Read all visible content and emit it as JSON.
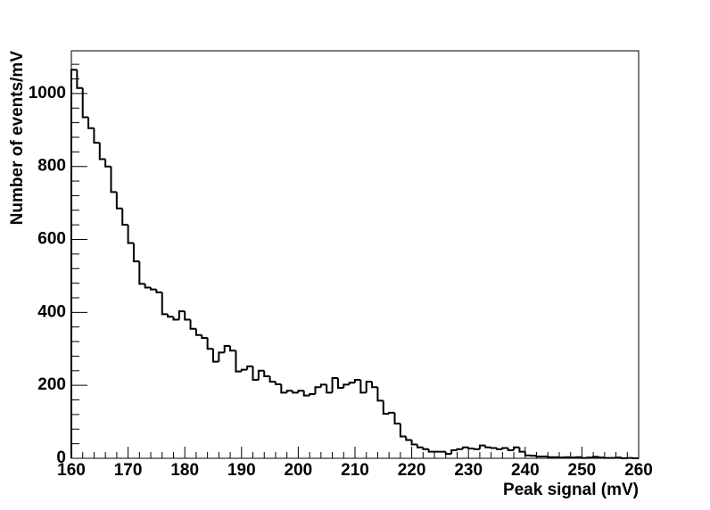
{
  "chart_data": {
    "type": "histogram",
    "xlabel": "Peak signal (mV)",
    "ylabel": "Number of events/mV",
    "color": "#000000",
    "bins": [
      160,
      161,
      162,
      163,
      164,
      165,
      166,
      167,
      168,
      169,
      170,
      171,
      172,
      173,
      174,
      175,
      176,
      177,
      178,
      179,
      180,
      181,
      182,
      183,
      184,
      185,
      186,
      187,
      188,
      189,
      190,
      191,
      192,
      193,
      194,
      195,
      196,
      197,
      198,
      199,
      200,
      201,
      202,
      203,
      204,
      205,
      206,
      207,
      208,
      209,
      210,
      211,
      212,
      213,
      214,
      215,
      216,
      217,
      218,
      219,
      220,
      221,
      222,
      223,
      224,
      225,
      226,
      227,
      228,
      229,
      230,
      231,
      232,
      233,
      234,
      235,
      236,
      237,
      238,
      239,
      240,
      241,
      242,
      243,
      244,
      245,
      246,
      247,
      248,
      249,
      250,
      251,
      252,
      253,
      254,
      255,
      256,
      257,
      258,
      259,
      260
    ],
    "values": [
      1065,
      1015,
      935,
      905,
      865,
      820,
      800,
      730,
      685,
      640,
      590,
      540,
      478,
      468,
      463,
      455,
      395,
      388,
      380,
      403,
      380,
      355,
      338,
      330,
      300,
      265,
      290,
      308,
      295,
      238,
      243,
      252,
      215,
      240,
      225,
      210,
      203,
      180,
      185,
      180,
      185,
      172,
      176,
      195,
      202,
      180,
      220,
      193,
      202,
      207,
      215,
      180,
      210,
      195,
      158,
      122,
      125,
      95,
      60,
      50,
      38,
      30,
      25,
      18,
      18,
      18,
      12,
      22,
      25,
      30,
      27,
      25,
      35,
      30,
      28,
      25,
      28,
      22,
      30,
      18,
      8,
      7,
      5,
      5,
      3,
      3,
      2,
      3,
      2,
      3,
      1,
      2,
      4,
      2,
      1,
      1,
      2,
      0,
      1,
      0
    ],
    "xlim": [
      160,
      260
    ],
    "ylim": [
      0,
      1117
    ],
    "xticks": [
      160,
      170,
      180,
      190,
      200,
      210,
      220,
      230,
      240,
      250,
      260
    ],
    "yticks": [
      0,
      200,
      400,
      600,
      800,
      1000
    ]
  }
}
